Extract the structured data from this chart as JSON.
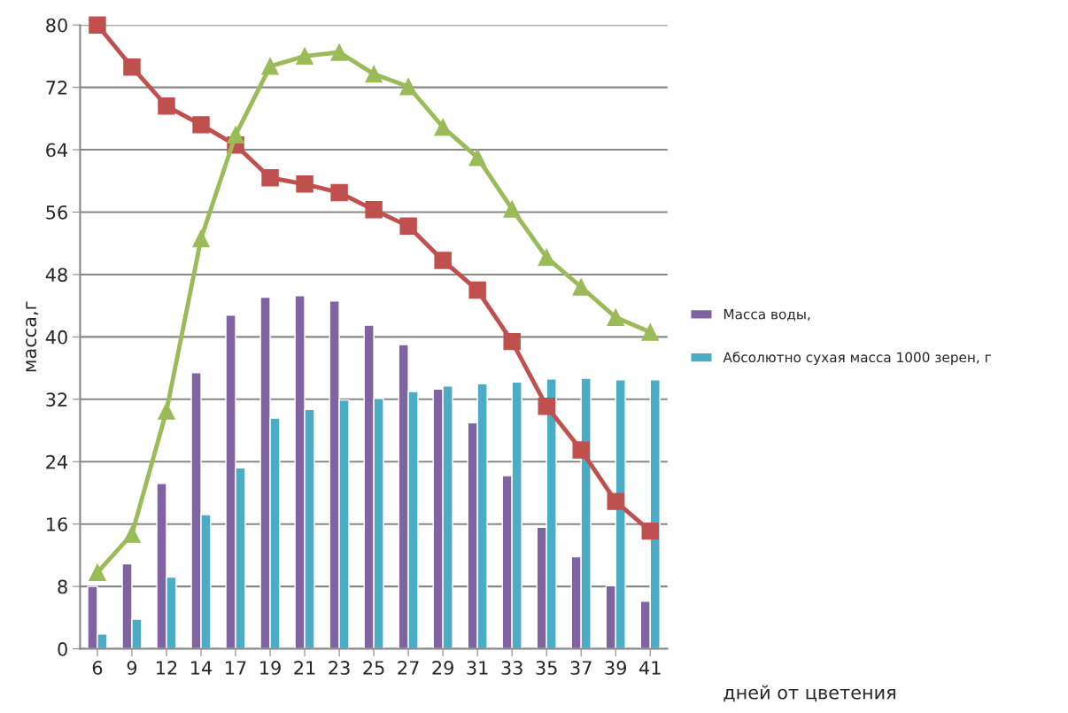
{
  "chart_data": {
    "type": "bar",
    "ylabel": "масса,г",
    "xlabel": "дней от цветения",
    "categories": [
      "6",
      "9",
      "12",
      "14",
      "17",
      "19",
      "21",
      "23",
      "25",
      "27",
      "29",
      "31",
      "33",
      "35",
      "37",
      "39",
      "41"
    ],
    "series": [
      {
        "name": "Масса воды,",
        "color": "#8064a2",
        "values": [
          8.0,
          10.9,
          21.2,
          35.4,
          42.8,
          45.1,
          45.3,
          44.6,
          41.5,
          39.0,
          33.3,
          29.0,
          22.2,
          15.6,
          11.8,
          8.1,
          6.1
        ]
      },
      {
        "name": "Абсолютно сухая масса 1000 зерен, г",
        "color": "#4bacc6",
        "values": [
          1.9,
          3.8,
          9.2,
          17.2,
          23.2,
          29.6,
          30.7,
          31.9,
          32.1,
          33.0,
          33.7,
          34.0,
          34.2,
          34.6,
          34.7,
          34.5,
          34.5
        ]
      },
      {
        "type": "line",
        "color": "#c0504d",
        "marker": "square",
        "values": [
          80.0,
          74.6,
          69.6,
          67.2,
          64.6,
          60.4,
          59.6,
          58.5,
          56.3,
          54.2,
          49.8,
          46.0,
          39.4,
          31.1,
          25.5,
          18.9,
          15.1
        ]
      },
      {
        "type": "line",
        "color": "#9bbb59",
        "marker": "triangle",
        "values": [
          9.8,
          14.7,
          30.5,
          52.6,
          65.9,
          74.7,
          76.0,
          76.5,
          73.7,
          72.1,
          66.9,
          63.0,
          56.4,
          50.2,
          46.4,
          42.5,
          40.6
        ]
      }
    ],
    "ylim": [
      0,
      80
    ],
    "yticks": [
      0,
      8,
      16,
      24,
      32,
      40,
      48,
      56,
      64,
      72,
      80
    ],
    "grid": "y",
    "legend": "right"
  }
}
